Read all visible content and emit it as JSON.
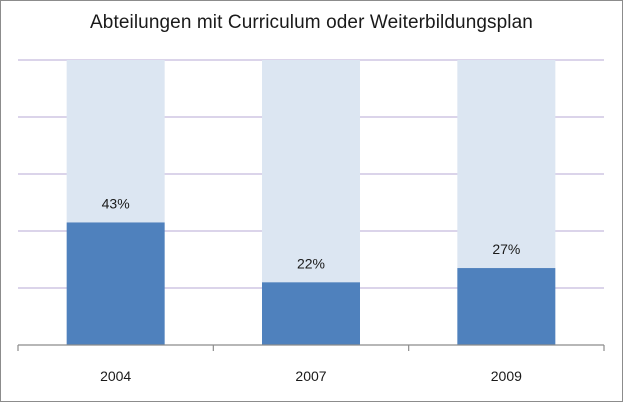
{
  "chart_data": {
    "type": "bar",
    "title": "Abteilungen mit Curriculum oder Weiterbildungsplan",
    "categories": [
      "2004",
      "2007",
      "2009"
    ],
    "values": [
      43,
      22,
      27
    ],
    "data_labels": [
      "43%",
      "22%",
      "27%"
    ],
    "total": 100,
    "ylim": [
      0,
      100
    ],
    "grid": true,
    "colors": {
      "value": "#4f81bd",
      "remainder": "#dce6f2",
      "grid": "#b7a9d6",
      "axis": "#8c8c8c"
    }
  }
}
